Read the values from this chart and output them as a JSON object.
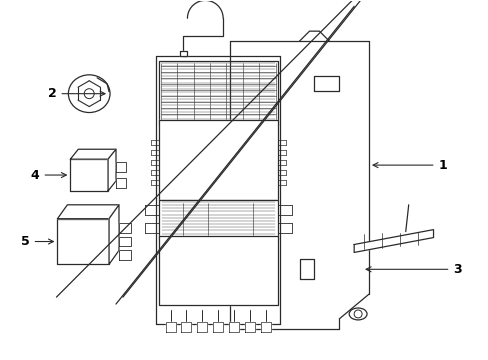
{
  "background_color": "#ffffff",
  "line_color": "#2a2a2a",
  "label_color": "#000000",
  "figure_width": 4.89,
  "figure_height": 3.6,
  "dpi": 100
}
